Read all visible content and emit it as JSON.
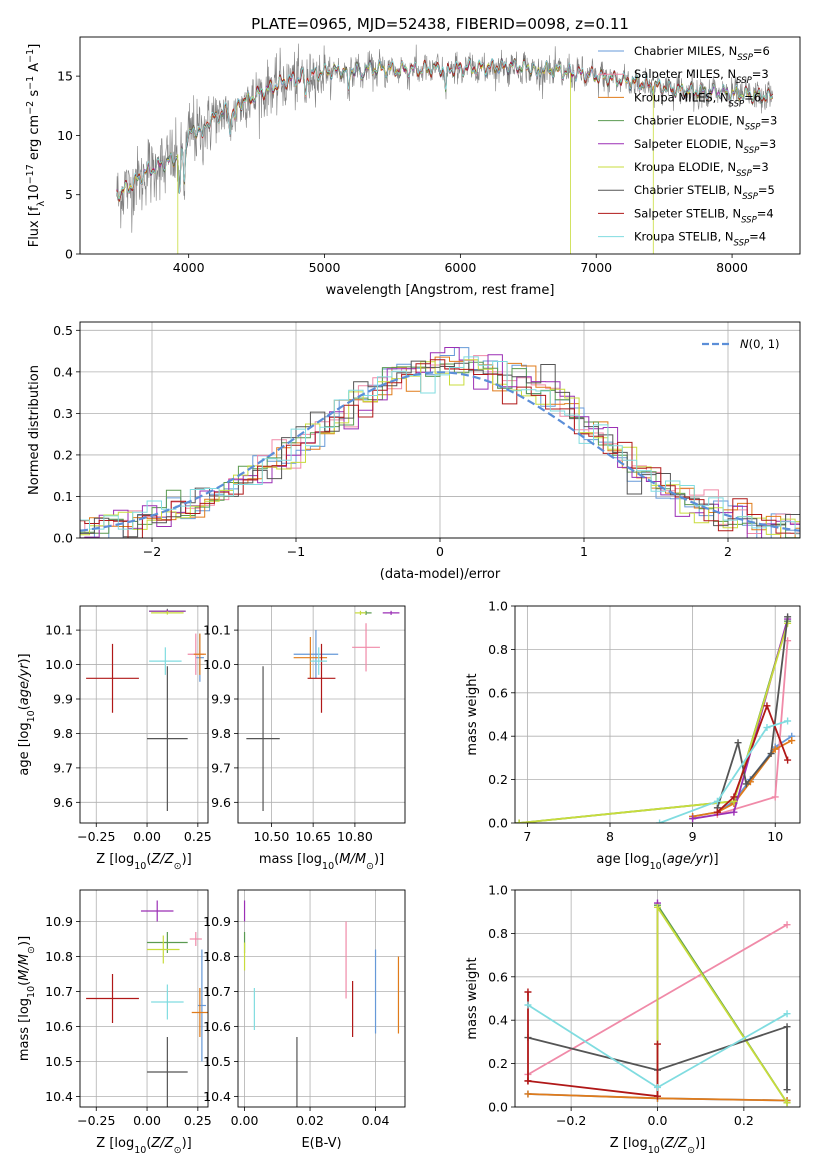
{
  "figure": {
    "title": "PLATE=0965, MJD=52438, FIBERID=0098, z=0.11"
  },
  "models": [
    {
      "name": "Chabrier MILES, N_SSP=6",
      "base": "Chabrier MILES, N",
      "sub": "SSP",
      "suffix": "=6",
      "color": "#6699d8"
    },
    {
      "name": "Salpeter MILES, N_SSP=3",
      "base": "Salpeter MILES, N",
      "sub": "SSP",
      "suffix": "=3",
      "color": "#f08aa8"
    },
    {
      "name": "Kroupa MILES, N_SSP=6",
      "base": "Kroupa MILES, N",
      "sub": "SSP",
      "suffix": "=6",
      "color": "#e07b1a"
    },
    {
      "name": "Chabrier ELODIE, N_SSP=3",
      "base": "Chabrier ELODIE, N",
      "sub": "SSP",
      "suffix": "=3",
      "color": "#5a9a50"
    },
    {
      "name": "Salpeter ELODIE, N_SSP=3",
      "base": "Salpeter ELODIE, N",
      "sub": "SSP",
      "suffix": "=3",
      "color": "#9b2fb5"
    },
    {
      "name": "Kroupa ELODIE, N_SSP=3",
      "base": "Kroupa ELODIE, N",
      "sub": "SSP",
      "suffix": "=3",
      "color": "#c8dc3c"
    },
    {
      "name": "Chabrier STELIB, N_SSP=5",
      "base": "Chabrier STELIB, N",
      "sub": "SSP",
      "suffix": "=5",
      "color": "#555555"
    },
    {
      "name": "Salpeter STELIB, N_SSP=4",
      "base": "Salpeter STELIB, N",
      "sub": "SSP",
      "suffix": "=4",
      "color": "#b01818"
    },
    {
      "name": "Kroupa STELIB, N_SSP=4",
      "base": "Kroupa STELIB, N",
      "sub": "SSP",
      "suffix": "=4",
      "color": "#80dce0"
    }
  ],
  "chart_data": [
    {
      "id": "spectrum",
      "type": "line",
      "xlabel": "wavelength [Angstrom, rest frame]",
      "ylabel": "Flux [f_λ 10^-17 erg cm^-2 s^-1 A^-1]",
      "xlim": [
        3200,
        8500
      ],
      "ylim": [
        0,
        18.3
      ],
      "xticks": [
        4000,
        5000,
        6000,
        7000,
        8000
      ],
      "yticks": [
        0,
        5,
        10,
        15
      ],
      "grid": false,
      "legend": "upper right",
      "data_wavelength_range": [
        3470,
        8300
      ],
      "continuum_knots": {
        "x": [
          3470,
          3550,
          3700,
          3900,
          4000,
          4200,
          4400,
          4700,
          5000,
          5300,
          5600,
          6000,
          6400,
          6800,
          7200,
          7600,
          8000,
          8300
        ],
        "y": [
          5.0,
          5.5,
          7.0,
          8.0,
          10.0,
          11.5,
          12.8,
          14.5,
          15.3,
          15.6,
          15.5,
          15.6,
          15.8,
          15.3,
          14.6,
          13.8,
          13.5,
          13.2
        ]
      },
      "absorption_features": [
        {
          "x": 3934,
          "depth": 4.0
        },
        {
          "x": 3968,
          "depth": 3.5
        },
        {
          "x": 4102,
          "depth": 1.5
        },
        {
          "x": 4304,
          "depth": 2.0
        },
        {
          "x": 4340,
          "depth": 1.5
        },
        {
          "x": 4861,
          "depth": 1.5
        },
        {
          "x": 5175,
          "depth": 2.0
        },
        {
          "x": 5270,
          "depth": 1.0
        },
        {
          "x": 5893,
          "depth": 2.0
        },
        {
          "x": 6563,
          "depth": 1.0
        }
      ]
    },
    {
      "id": "residuals",
      "type": "histogram",
      "xlabel": "(data-model)/error",
      "ylabel": "Normed distribution",
      "xlim": [
        -2.5,
        2.5
      ],
      "ylim": [
        0,
        0.52
      ],
      "xticks": [
        -2,
        -1,
        0,
        1,
        2
      ],
      "yticks": [
        0.0,
        0.1,
        0.2,
        0.3,
        0.4,
        0.5
      ],
      "grid": true,
      "legend": "upper right",
      "reference_curve": {
        "label": "N(0, 1)",
        "color": "#5b8ed8"
      },
      "bin_width": 0.1,
      "approx_mean_profile": {
        "x": [
          -2.5,
          -2.0,
          -1.5,
          -1.0,
          -0.5,
          -0.25,
          0.0,
          0.25,
          0.5,
          0.75,
          1.0,
          1.5,
          2.0,
          2.5
        ],
        "y": [
          0.02,
          0.05,
          0.1,
          0.22,
          0.34,
          0.4,
          0.41,
          0.42,
          0.39,
          0.36,
          0.27,
          0.13,
          0.05,
          0.02
        ]
      }
    },
    {
      "id": "age-vs-Z",
      "type": "errorbar",
      "xlabel": "Z [log10(Z/Z☉)]",
      "ylabel": "age  [log10(age/yr)]",
      "xlim": [
        -0.33,
        0.3
      ],
      "ylim": [
        9.54,
        10.17
      ],
      "xticks": [
        -0.25,
        0.0,
        0.25
      ],
      "yticks": [
        9.6,
        9.7,
        9.8,
        9.9,
        10.0,
        10.1
      ],
      "grid": true,
      "points": [
        {
          "model": 0,
          "x": 0.26,
          "y": 10.02,
          "xerr": 0.02,
          "yerr": 0.07
        },
        {
          "model": 1,
          "x": 0.24,
          "y": 10.03,
          "xerr": 0.04,
          "yerr": 0.06
        },
        {
          "model": 2,
          "x": 0.26,
          "y": 10.03,
          "xerr": 0.03,
          "yerr": 0.06
        },
        {
          "model": 3,
          "x": 0.1,
          "y": 10.155,
          "xerr": 0.09,
          "yerr": 0.007
        },
        {
          "model": 4,
          "x": 0.1,
          "y": 10.155,
          "xerr": 0.09,
          "yerr": 0.005
        },
        {
          "model": 5,
          "x": 0.1,
          "y": 10.15,
          "xerr": 0.08,
          "yerr": 0.005
        },
        {
          "model": 6,
          "x": 0.1,
          "y": 9.785,
          "xerr": 0.1,
          "yerr": 0.21
        },
        {
          "model": 7,
          "x": -0.17,
          "y": 9.96,
          "xerr": 0.13,
          "yerr": 0.1
        },
        {
          "model": 8,
          "x": 0.09,
          "y": 10.01,
          "xerr": 0.08,
          "yerr": 0.04
        }
      ]
    },
    {
      "id": "age-vs-mass",
      "type": "errorbar",
      "xlabel": "mass [log10(M/M☉)]",
      "ylabel": "",
      "xlim": [
        10.38,
        10.98
      ],
      "ylim": [
        9.54,
        10.17
      ],
      "xticks": [
        10.5,
        10.65,
        10.8
      ],
      "xticklabels": [
        "10.50",
        "10.65",
        "10.80"
      ],
      "yticks": [
        9.6,
        9.7,
        9.8,
        9.9,
        10.0,
        10.1
      ],
      "grid": true,
      "points": [
        {
          "model": 0,
          "x": 10.66,
          "y": 10.03,
          "xerr": 0.08,
          "yerr": 0.07
        },
        {
          "model": 1,
          "x": 10.84,
          "y": 10.05,
          "xerr": 0.05,
          "yerr": 0.07
        },
        {
          "model": 2,
          "x": 10.64,
          "y": 10.02,
          "xerr": 0.06,
          "yerr": 0.06
        },
        {
          "model": 3,
          "x": 10.84,
          "y": 10.15,
          "xerr": 0.02,
          "yerr": 0.006
        },
        {
          "model": 4,
          "x": 10.93,
          "y": 10.15,
          "xerr": 0.03,
          "yerr": 0.006
        },
        {
          "model": 5,
          "x": 10.82,
          "y": 10.15,
          "xerr": 0.02,
          "yerr": 0.006
        },
        {
          "model": 6,
          "x": 10.47,
          "y": 9.785,
          "xerr": 0.06,
          "yerr": 0.21
        },
        {
          "model": 7,
          "x": 10.68,
          "y": 9.96,
          "xerr": 0.05,
          "yerr": 0.1
        },
        {
          "model": 8,
          "x": 10.67,
          "y": 10.01,
          "xerr": 0.03,
          "yerr": 0.04
        }
      ]
    },
    {
      "id": "weight-vs-age",
      "type": "line",
      "xlabel": "age  [log10(age/yr)]",
      "ylabel": "mass weight",
      "xlim": [
        6.85,
        10.3
      ],
      "ylim": [
        0.0,
        1.0
      ],
      "xticks": [
        7,
        8,
        9,
        10
      ],
      "yticks": [
        0.0,
        0.2,
        0.4,
        0.6,
        0.8,
        1.0
      ],
      "grid": true,
      "series": [
        {
          "model": 0,
          "x": [
            9.0,
            9.3,
            9.5,
            9.7,
            10.0,
            10.2
          ],
          "y": [
            0.03,
            0.05,
            0.1,
            0.2,
            0.35,
            0.4
          ]
        },
        {
          "model": 1,
          "x": [
            9.3,
            10.0,
            10.15
          ],
          "y": [
            0.04,
            0.12,
            0.84
          ]
        },
        {
          "model": 2,
          "x": [
            9.0,
            9.3,
            9.5,
            9.7,
            10.0,
            10.2
          ],
          "y": [
            0.03,
            0.05,
            0.09,
            0.19,
            0.34,
            0.38
          ]
        },
        {
          "model": 3,
          "x": [
            6.9,
            9.5,
            10.15
          ],
          "y": [
            0.0,
            0.1,
            0.93
          ]
        },
        {
          "model": 4,
          "x": [
            9.0,
            9.5,
            10.15
          ],
          "y": [
            0.02,
            0.05,
            0.94
          ]
        },
        {
          "model": 5,
          "x": [
            6.9,
            9.5,
            10.15
          ],
          "y": [
            0.0,
            0.1,
            0.92
          ]
        },
        {
          "model": 6,
          "x": [
            9.3,
            9.55,
            9.65,
            9.95,
            10.15
          ],
          "y": [
            0.07,
            0.37,
            0.18,
            0.32,
            0.95
          ]
        },
        {
          "model": 7,
          "x": [
            9.3,
            9.5,
            9.9,
            10.15
          ],
          "y": [
            0.05,
            0.12,
            0.54,
            0.29
          ]
        },
        {
          "model": 8,
          "x": [
            8.6,
            9.3,
            9.9,
            10.15
          ],
          "y": [
            0.0,
            0.1,
            0.44,
            0.47
          ]
        }
      ]
    },
    {
      "id": "mass-vs-Z",
      "type": "errorbar",
      "xlabel": "Z [log10(Z/Z☉)]",
      "ylabel": "mass [log10(M/M☉)]",
      "xlim": [
        -0.33,
        0.3
      ],
      "ylim": [
        10.37,
        10.99
      ],
      "xticks": [
        -0.25,
        0.0,
        0.25
      ],
      "yticks": [
        10.4,
        10.5,
        10.6,
        10.7,
        10.8,
        10.9
      ],
      "grid": true,
      "points": [
        {
          "model": 0,
          "x": 0.27,
          "y": 10.66,
          "xerr": 0.02,
          "yerr": 0.16
        },
        {
          "model": 1,
          "x": 0.24,
          "y": 10.85,
          "xerr": 0.03,
          "yerr": 0.02
        },
        {
          "model": 2,
          "x": 0.26,
          "y": 10.64,
          "xerr": 0.04,
          "yerr": 0.07
        },
        {
          "model": 3,
          "x": 0.1,
          "y": 10.84,
          "xerr": 0.1,
          "yerr": 0.03
        },
        {
          "model": 4,
          "x": 0.05,
          "y": 10.93,
          "xerr": 0.08,
          "yerr": 0.03
        },
        {
          "model": 5,
          "x": 0.08,
          "y": 10.82,
          "xerr": 0.08,
          "yerr": 0.04
        },
        {
          "model": 6,
          "x": 0.1,
          "y": 10.47,
          "xerr": 0.1,
          "yerr": 0.1
        },
        {
          "model": 7,
          "x": -0.17,
          "y": 10.68,
          "xerr": 0.13,
          "yerr": 0.07
        },
        {
          "model": 8,
          "x": 0.1,
          "y": 10.67,
          "xerr": 0.08,
          "yerr": 0.05
        }
      ]
    },
    {
      "id": "mass-vs-ebv",
      "type": "errorbar",
      "xlabel": "E(B-V)",
      "ylabel": "",
      "xlim": [
        -0.002,
        0.049
      ],
      "ylim": [
        10.37,
        10.99
      ],
      "xticks": [
        0.0,
        0.02,
        0.04
      ],
      "xticklabels": [
        "0.00",
        "0.02",
        "0.04"
      ],
      "yticks": [
        10.4,
        10.5,
        10.6,
        10.7,
        10.8,
        10.9
      ],
      "grid": true,
      "points": [
        {
          "model": 0,
          "x": 0.04,
          "y": 10.7,
          "xerr": 0.0,
          "yerr": 0.12
        },
        {
          "model": 1,
          "x": 0.031,
          "y": 10.79,
          "xerr": 0.0,
          "yerr": 0.11
        },
        {
          "model": 2,
          "x": 0.047,
          "y": 10.69,
          "xerr": 0.0,
          "yerr": 0.11
        },
        {
          "model": 3,
          "x": 0.0,
          "y": 10.84,
          "xerr": 0.0,
          "yerr": 0.03
        },
        {
          "model": 4,
          "x": 0.0,
          "y": 10.93,
          "xerr": 0.0,
          "yerr": 0.03
        },
        {
          "model": 5,
          "x": 0.0,
          "y": 10.8,
          "xerr": 0.0,
          "yerr": 0.04
        },
        {
          "model": 6,
          "x": 0.016,
          "y": 10.47,
          "xerr": 0.0,
          "yerr": 0.1
        },
        {
          "model": 7,
          "x": 0.033,
          "y": 10.65,
          "xerr": 0.0,
          "yerr": 0.08
        },
        {
          "model": 8,
          "x": 0.003,
          "y": 10.65,
          "xerr": 0.0,
          "yerr": 0.06
        }
      ]
    },
    {
      "id": "weight-vs-Z",
      "type": "line",
      "xlabel": "Z [log10(Z/Z☉)]",
      "ylabel": "mass weight",
      "xlim": [
        -0.33,
        0.33
      ],
      "ylim": [
        0.0,
        1.0
      ],
      "xticks": [
        -0.2,
        0.0,
        0.2
      ],
      "yticks": [
        0.0,
        0.2,
        0.4,
        0.6,
        0.8,
        1.0
      ],
      "grid": true,
      "series": [
        {
          "model": 0,
          "x": [
            -0.3,
            0.0,
            0.3
          ],
          "y": [
            0.06,
            0.04,
            0.03
          ]
        },
        {
          "model": 1,
          "x": [
            -0.3,
            0.3
          ],
          "y": [
            0.15,
            0.84
          ]
        },
        {
          "model": 2,
          "x": [
            -0.3,
            0.0,
            0.3
          ],
          "y": [
            0.06,
            0.04,
            0.03
          ]
        },
        {
          "model": 3,
          "x": [
            0.0,
            0.0,
            0.3
          ],
          "y": [
            0.05,
            0.93,
            0.02
          ]
        },
        {
          "model": 4,
          "x": [
            0.0,
            0.0
          ],
          "y": [
            0.05,
            0.94
          ]
        },
        {
          "model": 5,
          "x": [
            0.0,
            0.0,
            0.3
          ],
          "y": [
            0.05,
            0.92,
            0.02
          ]
        },
        {
          "model": 6,
          "x": [
            -0.3,
            0.0,
            0.3,
            0.3
          ],
          "y": [
            0.32,
            0.17,
            0.37,
            0.08
          ]
        },
        {
          "model": 7,
          "x": [
            -0.3,
            -0.3,
            -0.3,
            0.0,
            0.0
          ],
          "y": [
            0.53,
            0.12,
            0.12,
            0.05,
            0.29
          ]
        },
        {
          "model": 8,
          "x": [
            -0.3,
            0.0,
            0.3
          ],
          "y": [
            0.47,
            0.09,
            0.43
          ]
        }
      ]
    }
  ]
}
